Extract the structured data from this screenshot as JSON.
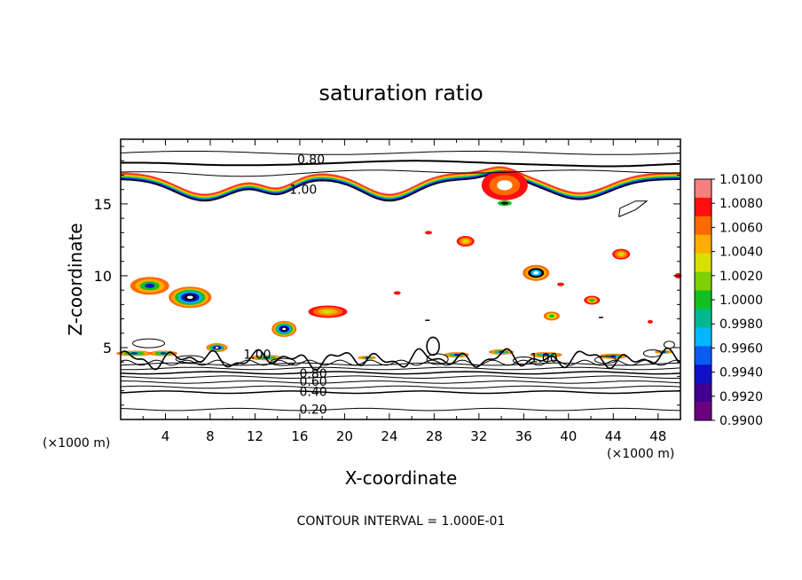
{
  "chart_data": {
    "type": "contour",
    "title": "saturation ratio",
    "xlabel": "X-coordinate",
    "ylabel": "Z-coordinate",
    "x_unit_left": "(×1000 m)",
    "x_unit_right": "(×1000 m)",
    "xlim": [
      0,
      50
    ],
    "ylim": [
      0,
      19.5
    ],
    "x_ticks": [
      4,
      8,
      12,
      16,
      20,
      24,
      28,
      32,
      36,
      40,
      44,
      48
    ],
    "x_tick_labels": [
      "4",
      "8",
      "12",
      "16",
      "20",
      "24",
      "28",
      "32",
      "36",
      "40",
      "44",
      "48"
    ],
    "y_ticks": [
      5,
      10,
      15
    ],
    "y_tick_labels": [
      "5",
      "10",
      "15"
    ],
    "footer": "CONTOUR INTERVAL = 1.000E-01",
    "contour_interval": 0.1,
    "contour_labels": [
      {
        "text": "0.80",
        "x": 17.0,
        "y": 18.1
      },
      {
        "text": "1.00",
        "x": 16.3,
        "y": 16.0
      },
      {
        "text": "1.00",
        "x": 12.2,
        "y": 4.55
      },
      {
        "text": "1.00",
        "x": 37.8,
        "y": 4.3
      },
      {
        "text": "0.80",
        "x": 17.2,
        "y": 3.2
      },
      {
        "text": "0.60",
        "x": 17.2,
        "y": 2.65
      },
      {
        "text": "0.40",
        "x": 17.2,
        "y": 1.95
      },
      {
        "text": "0.20",
        "x": 17.2,
        "y": 0.7
      }
    ],
    "colorbar": {
      "min": 0.99,
      "max": 1.01,
      "tick_labels": [
        "1.0100",
        "1.0080",
        "1.0060",
        "1.0040",
        "1.0020",
        "1.0000",
        "0.9980",
        "0.9960",
        "0.9940",
        "0.9920",
        "0.9900"
      ],
      "colors": [
        "#f58080",
        "#ff1010",
        "#ff6a00",
        "#ffae00",
        "#d7e000",
        "#7ed000",
        "#10c020",
        "#00b890",
        "#00b8ff",
        "#0a5cf0",
        "#1010c8",
        "#400090",
        "#6a0080"
      ]
    }
  }
}
